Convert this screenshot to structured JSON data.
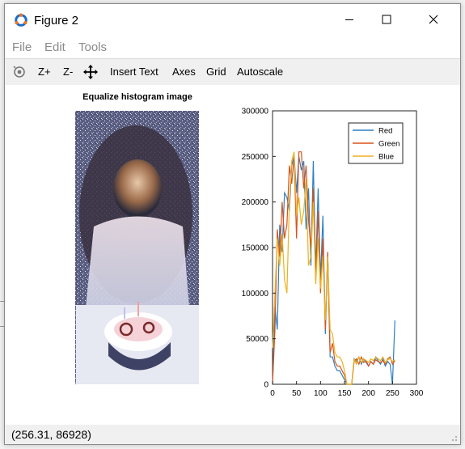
{
  "window": {
    "title": "Figure 2"
  },
  "menu": {
    "items": [
      "File",
      "Edit",
      "Tools"
    ]
  },
  "toolbar": {
    "zoom_in": "Z+",
    "zoom_out": "Z-",
    "insert_text": "Insert Text",
    "axes": "Axes",
    "grid": "Grid",
    "autoscale": "Autoscale"
  },
  "left_panel": {
    "title": "Equalize histogram image"
  },
  "status": {
    "text": "(256.31, 86928)"
  },
  "colors": {
    "red": "#2f7fc1",
    "green": "#d95319",
    "blue": "#edb120",
    "accent": "#e8762c",
    "app_blue": "#1b6cc8"
  },
  "chart_data": {
    "type": "line",
    "title": "",
    "xlabel": "",
    "ylabel": "",
    "xlim": [
      0,
      300
    ],
    "ylim": [
      0,
      300000
    ],
    "xticks": [
      0,
      50,
      100,
      150,
      200,
      250,
      300
    ],
    "yticks": [
      0,
      50000,
      100000,
      150000,
      200000,
      250000,
      300000
    ],
    "legend_position": "top-right",
    "x": [
      0,
      5,
      10,
      15,
      20,
      25,
      30,
      35,
      40,
      45,
      50,
      55,
      60,
      65,
      70,
      75,
      80,
      85,
      90,
      95,
      100,
      105,
      110,
      115,
      120,
      125,
      130,
      135,
      140,
      145,
      150,
      155,
      160,
      165,
      170,
      175,
      180,
      185,
      190,
      195,
      200,
      205,
      210,
      215,
      220,
      225,
      230,
      235,
      240,
      245,
      250,
      255
    ],
    "series": [
      {
        "name": "Red",
        "values": [
          0,
          85000,
          60000,
          175000,
          145000,
          210000,
          205000,
          190000,
          240000,
          250000,
          210000,
          250000,
          235000,
          245000,
          170000,
          215000,
          130000,
          245000,
          125000,
          215000,
          115000,
          185000,
          55000,
          145000,
          30000,
          30000,
          20000,
          15000,
          15000,
          10000,
          5000,
          0,
          0,
          0,
          28000,
          25000,
          30000,
          22000,
          28000,
          24000,
          20000,
          25000,
          22000,
          30000,
          26000,
          22000,
          28000,
          20000,
          25000,
          22000,
          0,
          70000
        ]
      },
      {
        "name": "Green",
        "values": [
          0,
          60000,
          170000,
          140000,
          200000,
          160000,
          175000,
          240000,
          220000,
          250000,
          160000,
          255000,
          255000,
          215000,
          240000,
          180000,
          150000,
          215000,
          115000,
          190000,
          100000,
          160000,
          60000,
          145000,
          35000,
          45000,
          25000,
          20000,
          20000,
          15000,
          10000,
          0,
          0,
          0,
          25000,
          28000,
          22000,
          30000,
          24000,
          26000,
          20000,
          25000,
          22000,
          27000,
          25000,
          24000,
          26000,
          22000,
          28000,
          30000,
          22000,
          26000
        ]
      },
      {
        "name": "Blue",
        "values": [
          40000,
          100000,
          160000,
          130000,
          165000,
          115000,
          100000,
          200000,
          245000,
          255000,
          185000,
          205000,
          175000,
          190000,
          225000,
          130000,
          140000,
          200000,
          110000,
          160000,
          105000,
          140000,
          70000,
          140000,
          60000,
          55000,
          35000,
          30000,
          30000,
          25000,
          15000,
          0,
          0,
          0,
          28000,
          22000,
          30000,
          24000,
          28000,
          26000,
          24000,
          28000,
          26000,
          30000,
          28000,
          26000,
          30000,
          24000,
          27000,
          28000,
          25000,
          27000
        ]
      }
    ]
  }
}
